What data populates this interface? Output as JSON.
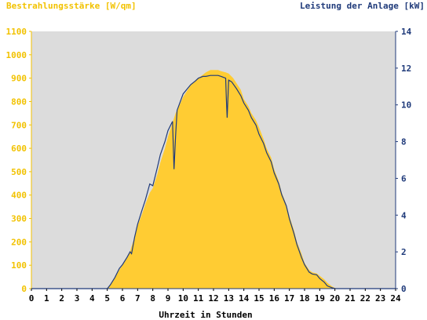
{
  "chart_data": {
    "type": "area",
    "ylabel_left": "Bestrahlungsstärke [W/qm]",
    "ylabel_right": "Leistung der Anlage [kW]",
    "xlabel": "Uhrzeit in Stunden",
    "x_ticks": [
      "0",
      "1",
      "2",
      "3",
      "4",
      "5",
      "6",
      "7",
      "8",
      "9",
      "10",
      "11",
      "12",
      "13",
      "14",
      "15",
      "16",
      "17",
      "18",
      "19",
      "20",
      "21",
      "22",
      "23",
      "24"
    ],
    "y_left_ticks": [
      "0",
      "100",
      "200",
      "300",
      "400",
      "500",
      "600",
      "700",
      "800",
      "900",
      "1000",
      "1100"
    ],
    "y_right_ticks": [
      "0",
      "2",
      "4",
      "6",
      "8",
      "10",
      "12",
      "14"
    ],
    "xlim": [
      0,
      24
    ],
    "ylim_left": [
      0,
      1100
    ],
    "ylim_right": [
      0,
      14
    ],
    "grid": false,
    "colors": {
      "irradiance": "#ffcc33",
      "power": "#1f3a7a",
      "plot_bg": "#dcdcdc",
      "left_axis": "#f2c200",
      "right_axis": "#1f3a7a"
    },
    "series": [
      {
        "name": "Bestrahlungsstärke [W/qm]",
        "axis": "left",
        "x": [
          0,
          5.0,
          5.2,
          5.5,
          5.8,
          6.0,
          6.3,
          6.5,
          6.8,
          7.0,
          7.3,
          7.5,
          7.8,
          8.0,
          8.3,
          8.5,
          8.8,
          9.0,
          9.3,
          9.5,
          9.8,
          10.0,
          10.3,
          10.5,
          10.8,
          11.0,
          11.3,
          11.5,
          11.8,
          12.0,
          12.3,
          12.5,
          12.8,
          13.0,
          13.3,
          13.5,
          13.8,
          14.0,
          14.3,
          14.5,
          14.8,
          15.0,
          15.3,
          15.5,
          15.8,
          16.0,
          16.3,
          16.5,
          16.8,
          17.0,
          17.3,
          17.5,
          17.8,
          18.0,
          18.3,
          18.5,
          18.8,
          19.0,
          19.3,
          19.5,
          19.8,
          20.0,
          20.2,
          24
        ],
        "y": [
          0,
          0,
          15,
          45,
          80,
          100,
          130,
          160,
          220,
          270,
          320,
          360,
          410,
          430,
          490,
          540,
          600,
          650,
          710,
          750,
          790,
          820,
          850,
          870,
          890,
          900,
          915,
          925,
          935,
          935,
          935,
          930,
          925,
          920,
          900,
          880,
          850,
          810,
          780,
          750,
          720,
          690,
          640,
          600,
          560,
          510,
          460,
          410,
          360,
          310,
          250,
          200,
          150,
          110,
          80,
          70,
          65,
          55,
          40,
          25,
          10,
          3,
          0,
          0
        ]
      },
      {
        "name": "Leistung der Anlage [kW]",
        "axis": "right",
        "x": [
          0,
          5.0,
          5.2,
          5.5,
          5.8,
          6.0,
          6.3,
          6.5,
          6.6,
          6.8,
          7.0,
          7.3,
          7.5,
          7.8,
          8.0,
          8.3,
          8.5,
          8.8,
          9.0,
          9.3,
          9.4,
          9.5,
          9.6,
          10.0,
          10.3,
          10.5,
          10.8,
          11.0,
          11.3,
          11.5,
          11.8,
          12.0,
          12.3,
          12.5,
          12.8,
          12.85,
          12.9,
          13.0,
          13.1,
          13.2,
          13.5,
          13.8,
          14.0,
          14.3,
          14.5,
          14.8,
          15.0,
          15.3,
          15.5,
          15.8,
          16.0,
          16.3,
          16.5,
          16.8,
          17.0,
          17.3,
          17.5,
          17.8,
          18.0,
          18.3,
          18.5,
          18.8,
          19.0,
          19.3,
          19.5,
          19.8,
          20.0,
          20.2,
          24
        ],
        "y": [
          0,
          0,
          0.2,
          0.6,
          1.1,
          1.3,
          1.7,
          2.0,
          1.9,
          2.8,
          3.5,
          4.3,
          4.8,
          5.7,
          5.6,
          6.6,
          7.3,
          8.0,
          8.6,
          9.1,
          6.5,
          8.3,
          9.7,
          10.6,
          10.9,
          11.1,
          11.3,
          11.45,
          11.55,
          11.55,
          11.6,
          11.6,
          11.6,
          11.55,
          11.45,
          10.3,
          9.3,
          11.35,
          11.3,
          11.25,
          10.9,
          10.5,
          10.1,
          9.7,
          9.3,
          8.9,
          8.4,
          7.9,
          7.4,
          6.9,
          6.3,
          5.7,
          5.1,
          4.5,
          3.8,
          3.0,
          2.4,
          1.7,
          1.3,
          0.9,
          0.8,
          0.75,
          0.55,
          0.35,
          0.15,
          0.05,
          0,
          0,
          0
        ]
      }
    ]
  }
}
